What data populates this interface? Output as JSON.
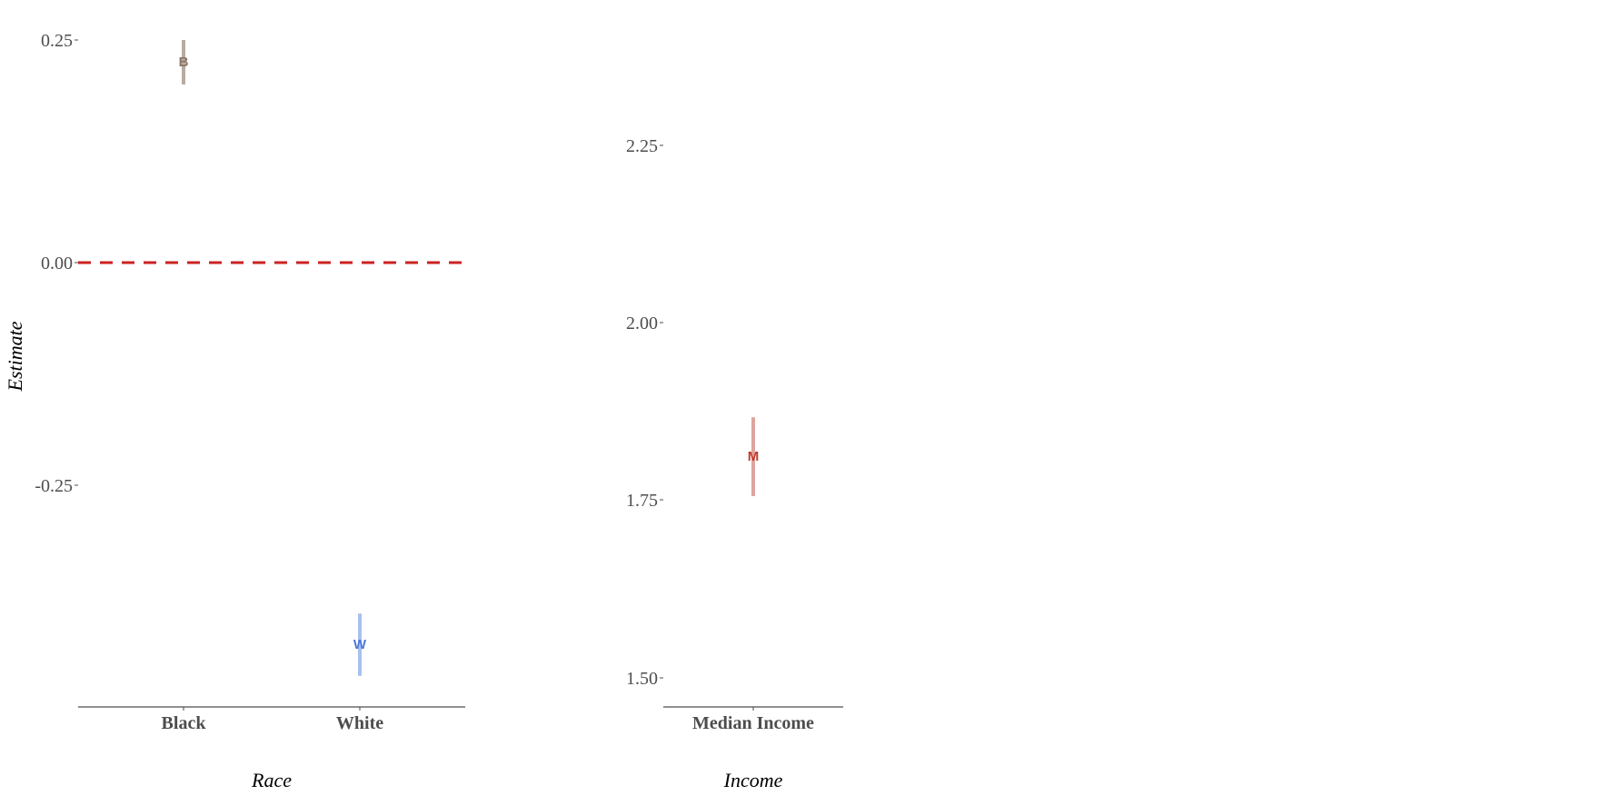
{
  "chart_data": [
    {
      "type": "scatter",
      "panel": "race",
      "xlabel": "Race",
      "ylabel": "Estimate",
      "categories": [
        "Black",
        "White"
      ],
      "ylim": [
        -0.5,
        0.25
      ],
      "yticks": [
        "0.25",
        "0.00",
        "-0.25"
      ],
      "reference_line": {
        "y": 0.0,
        "style": "dashed",
        "color": "#cc2222"
      },
      "points": [
        {
          "category": "Black",
          "label": "B",
          "estimate": 0.225,
          "low": 0.2,
          "high": 0.25,
          "color": "#8a7565",
          "bar_color": "#b8aba1"
        },
        {
          "category": "White",
          "label": "W",
          "estimate": -0.43,
          "low": -0.465,
          "high": -0.395,
          "color": "#4a78d8",
          "bar_color": "#a9c0ec"
        }
      ]
    },
    {
      "type": "scatter",
      "panel": "income",
      "xlabel": "Income",
      "ylabel": "",
      "categories": [
        "Median Income"
      ],
      "ylim": [
        1.465,
        2.39
      ],
      "yticks": [
        "2.25",
        "2.00",
        "1.75",
        "1.50"
      ],
      "points": [
        {
          "category": "Median Income",
          "label": "M",
          "estimate": 1.815,
          "low": 1.76,
          "high": 1.87,
          "color": "#c0392b",
          "bar_color": "#e0a39d"
        }
      ]
    }
  ]
}
